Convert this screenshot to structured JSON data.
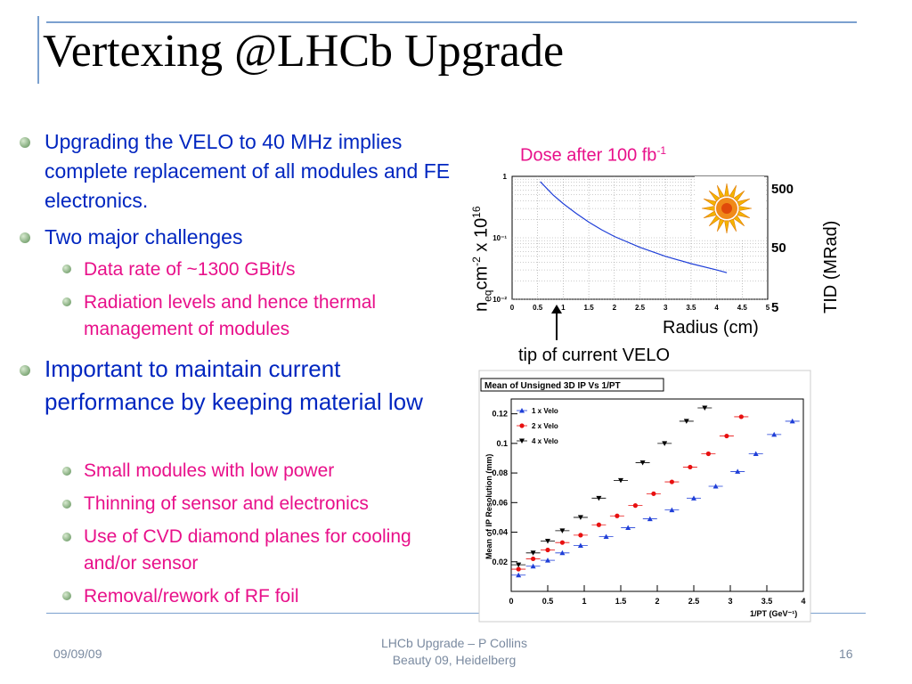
{
  "title": "Vertexing @LHCb Upgrade",
  "bullets": {
    "b1": "Upgrading the VELO to 40 MHz implies complete replacement of all modules and FE electronics.",
    "b2": "Two major challenges",
    "b2_sub": [
      "Data rate of ~1300 GBit/s",
      "Radiation levels and hence thermal management of modules"
    ],
    "b3": "Important to maintain current performance by keeping material low",
    "b3_sub": [
      "Small modules with low power",
      "Thinning of sensor and electronics",
      "Use of CVD diamond planes for cooling and/or sensor",
      "Removal/rework of RF foil"
    ]
  },
  "dose_chart": {
    "title_main": "Dose after 100 fb",
    "title_sup": "-1",
    "ylabel_n": "n",
    "ylabel_sub": "eq",
    "ylabel_cm": "cm",
    "ylabel_sup": "-2",
    "ylabel_x": " x 10",
    "ylabel_exp": "16",
    "right_label": "TID (MRad)",
    "tid_ticks": [
      "500",
      "50",
      "5"
    ],
    "xlabel": "Radius (cm)",
    "annotation": "tip of current VELO",
    "x_ticks": [
      "0",
      "0.5",
      "1",
      "1.5",
      "2",
      "2.5",
      "3",
      "3.5",
      "4",
      "4.5",
      "5"
    ],
    "y_ticks": [
      "1",
      "10⁻¹",
      "10⁻²"
    ]
  },
  "ip_chart": {
    "title": "Mean of Unsigned 3D IP Vs 1/PT",
    "xlabel": "1/PT (GeV⁻¹)",
    "ylabel": "Mean of IP Resolution (mm)",
    "x_ticks": [
      "0",
      "0.5",
      "1",
      "1.5",
      "2",
      "2.5",
      "3",
      "3.5",
      "4"
    ],
    "y_ticks": [
      "0.02",
      "0.04",
      "0.06",
      "0.08",
      "0.1",
      "0.12"
    ],
    "legend": [
      "1 x Velo",
      "2 x Velo",
      "4 x Velo"
    ]
  },
  "chart_data": [
    {
      "type": "line",
      "title": "Dose after 100 fb-1",
      "xlabel": "Radius (cm)",
      "ylabel": "neq cm-2 x 10^16",
      "xlim": [
        0,
        5
      ],
      "ylim": [
        0.01,
        1
      ],
      "yscale": "log",
      "series": [
        {
          "x": [
            0.55,
            0.8,
            1.0,
            1.25,
            1.5,
            1.75,
            2.0,
            2.5,
            3.0,
            3.5,
            4.0,
            4.2
          ],
          "y": [
            0.82,
            0.5,
            0.36,
            0.25,
            0.18,
            0.135,
            0.105,
            0.07,
            0.05,
            0.038,
            0.03,
            0.027
          ]
        }
      ]
    },
    {
      "type": "scatter",
      "title": "Mean of Unsigned 3D IP Vs 1/PT",
      "xlabel": "1/PT (GeV-1)",
      "ylabel": "Mean of IP Resolution (mm)",
      "xlim": [
        0,
        4
      ],
      "ylim": [
        0,
        0.13
      ],
      "series": [
        {
          "name": "1 x Velo",
          "x": [
            0.1,
            0.3,
            0.5,
            0.7,
            0.95,
            1.3,
            1.6,
            1.9,
            2.2,
            2.5,
            2.8,
            3.1,
            3.35,
            3.6,
            3.85
          ],
          "y": [
            0.011,
            0.017,
            0.021,
            0.026,
            0.031,
            0.037,
            0.043,
            0.049,
            0.055,
            0.063,
            0.071,
            0.081,
            0.093,
            0.106,
            0.115
          ]
        },
        {
          "name": "2 x Velo",
          "x": [
            0.1,
            0.3,
            0.5,
            0.7,
            0.95,
            1.2,
            1.45,
            1.7,
            1.95,
            2.2,
            2.45,
            2.7,
            2.95,
            3.15
          ],
          "y": [
            0.015,
            0.022,
            0.028,
            0.033,
            0.038,
            0.045,
            0.051,
            0.058,
            0.066,
            0.074,
            0.084,
            0.093,
            0.105,
            0.118
          ]
        },
        {
          "name": "4 x Velo",
          "x": [
            0.1,
            0.3,
            0.5,
            0.7,
            0.95,
            1.2,
            1.5,
            1.8,
            2.1,
            2.4,
            2.65
          ],
          "y": [
            0.018,
            0.026,
            0.034,
            0.041,
            0.05,
            0.063,
            0.075,
            0.087,
            0.1,
            0.115,
            0.124
          ]
        }
      ]
    }
  ],
  "footer": {
    "date": "09/09/09",
    "center_line1": "LHCb Upgrade – P Collins",
    "center_line2": "Beauty 09, Heidelberg",
    "page": "16"
  }
}
